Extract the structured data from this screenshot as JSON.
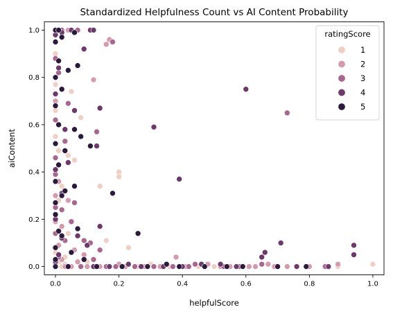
{
  "chart_data": {
    "type": "scatter",
    "title": "Standardized Helpfulness Count vs AI Content Probability",
    "xlabel": "helpfulScore",
    "ylabel": "aiContent",
    "xlim": [
      -0.035,
      1.035
    ],
    "ylim": [
      -0.035,
      1.035
    ],
    "xticks": [
      0.0,
      0.2,
      0.4,
      0.6,
      0.8,
      1.0
    ],
    "yticks": [
      0.0,
      0.2,
      0.4,
      0.6,
      0.8,
      1.0
    ],
    "xtick_labels": [
      "0.0",
      "0.2",
      "0.4",
      "0.6",
      "0.8",
      "1.0"
    ],
    "ytick_labels": [
      "0.0",
      "0.2",
      "0.4",
      "0.6",
      "0.8",
      "1.0"
    ],
    "grid": false,
    "legend": {
      "title": "ratingScore",
      "placement": "top-right",
      "entries": [
        "1",
        "2",
        "3",
        "4",
        "5"
      ]
    },
    "colors": {
      "1": "#eed0c7",
      "2": "#d49aae",
      "3": "#a7688f",
      "4": "#6b3a6b",
      "5": "#2b1a3b"
    },
    "series": [
      {
        "name": "1",
        "points": [
          [
            0.0,
            0.0
          ],
          [
            0.01,
            0.02
          ],
          [
            0.02,
            0.0
          ],
          [
            0.0,
            0.06
          ],
          [
            0.03,
            0.01
          ],
          [
            0.05,
            0.74
          ],
          [
            0.08,
            0.63
          ],
          [
            0.04,
            0.47
          ],
          [
            0.0,
            0.55
          ],
          [
            0.06,
            0.45
          ],
          [
            0.2,
            0.4
          ],
          [
            0.2,
            0.38
          ],
          [
            0.14,
            0.34
          ],
          [
            0.16,
            0.11
          ],
          [
            0.23,
            0.08
          ],
          [
            0.17,
            0.0
          ],
          [
            0.3,
            0.01
          ],
          [
            0.36,
            0.0
          ],
          [
            0.42,
            0.0
          ],
          [
            0.5,
            0.0
          ],
          [
            0.58,
            0.0
          ],
          [
            0.89,
            0.0
          ],
          [
            1.0,
            0.01
          ],
          [
            0.0,
            0.66
          ],
          [
            0.0,
            0.77
          ],
          [
            0.02,
            0.34
          ],
          [
            0.01,
            0.28
          ],
          [
            0.04,
            0.14
          ],
          [
            0.1,
            0.02
          ],
          [
            0.12,
            0.0
          ],
          [
            0.26,
            0.0
          ],
          [
            0.45,
            0.0
          ],
          [
            0.01,
            0.49
          ],
          [
            0.0,
            0.9
          ],
          [
            0.03,
            0.04
          ]
        ]
      },
      {
        "name": "2",
        "points": [
          [
            0.0,
            0.01
          ],
          [
            0.02,
            0.03
          ],
          [
            0.01,
            0.09
          ],
          [
            0.05,
            0.0
          ],
          [
            0.0,
            0.3
          ],
          [
            0.01,
            0.36
          ],
          [
            0.04,
            0.28
          ],
          [
            0.07,
            0.02
          ],
          [
            0.12,
            0.79
          ],
          [
            0.16,
            0.94
          ],
          [
            0.17,
            0.96
          ],
          [
            0.0,
            0.7
          ],
          [
            0.1,
            0.0
          ],
          [
            0.14,
            0.0
          ],
          [
            0.2,
            0.01
          ],
          [
            0.28,
            0.0
          ],
          [
            0.33,
            0.0
          ],
          [
            0.41,
            0.0
          ],
          [
            0.48,
            0.01
          ],
          [
            0.55,
            0.0
          ],
          [
            0.63,
            0.0
          ],
          [
            0.67,
            0.01
          ],
          [
            0.73,
            0.0
          ],
          [
            0.89,
            0.01
          ],
          [
            0.38,
            0.04
          ],
          [
            0.0,
            0.19
          ],
          [
            0.02,
            0.17
          ],
          [
            0.06,
            0.07
          ],
          [
            0.09,
            0.05
          ],
          [
            0.0,
            1.0
          ],
          [
            0.04,
            1.0
          ],
          [
            0.03,
            0.0
          ],
          [
            0.22,
            0.0
          ],
          [
            0.52,
            0.0
          ],
          [
            0.61,
            0.0
          ],
          [
            0.69,
            0.0
          ],
          [
            0.8,
            0.0
          ]
        ]
      },
      {
        "name": "3",
        "points": [
          [
            0.0,
            0.0
          ],
          [
            0.01,
            0.04
          ],
          [
            0.0,
            0.14
          ],
          [
            0.03,
            0.11
          ],
          [
            0.05,
            0.19
          ],
          [
            0.04,
            0.69
          ],
          [
            0.0,
            0.88
          ],
          [
            0.02,
            1.0
          ],
          [
            0.07,
            1.0
          ],
          [
            0.18,
            0.95
          ],
          [
            0.13,
            0.57
          ],
          [
            0.11,
            0.1
          ],
          [
            0.14,
            0.07
          ],
          [
            0.09,
            0.11
          ],
          [
            0.0,
            0.62
          ],
          [
            0.01,
            0.82
          ],
          [
            0.0,
            0.39
          ],
          [
            0.02,
            0.24
          ],
          [
            0.08,
            0.0
          ],
          [
            0.19,
            0.0
          ],
          [
            0.25,
            0.0
          ],
          [
            0.31,
            0.0
          ],
          [
            0.37,
            0.0
          ],
          [
            0.44,
            0.01
          ],
          [
            0.53,
            0.0
          ],
          [
            0.65,
            0.01
          ],
          [
            0.73,
            0.65
          ],
          [
            0.0,
            0.46
          ],
          [
            0.03,
            0.53
          ],
          [
            0.06,
            0.27
          ],
          [
            0.12,
            0.03
          ],
          [
            0.16,
            0.0
          ],
          [
            0.42,
            0.0
          ],
          [
            0.58,
            0.0
          ],
          [
            0.85,
            0.0
          ],
          [
            0.0,
            0.25
          ],
          [
            0.01,
            0.6
          ]
        ]
      },
      {
        "name": "4",
        "points": [
          [
            0.0,
            0.02
          ],
          [
            0.01,
            0.05
          ],
          [
            0.02,
            0.12
          ],
          [
            0.0,
            0.2
          ],
          [
            0.03,
            0.58
          ],
          [
            0.0,
            0.73
          ],
          [
            0.01,
            0.84
          ],
          [
            0.09,
            0.92
          ],
          [
            0.06,
            0.66
          ],
          [
            0.14,
            0.67
          ],
          [
            0.13,
            0.51
          ],
          [
            0.04,
            0.44
          ],
          [
            0.0,
            0.98
          ],
          [
            0.02,
            0.99
          ],
          [
            0.05,
            1.0
          ],
          [
            0.11,
            1.0
          ],
          [
            0.12,
            1.0
          ],
          [
            0.31,
            0.59
          ],
          [
            0.39,
            0.37
          ],
          [
            0.6,
            0.75
          ],
          [
            0.1,
            0.09
          ],
          [
            0.12,
            0.0
          ],
          [
            0.17,
            0.0
          ],
          [
            0.23,
            0.01
          ],
          [
            0.27,
            0.0
          ],
          [
            0.34,
            0.0
          ],
          [
            0.4,
            0.0
          ],
          [
            0.46,
            0.01
          ],
          [
            0.52,
            0.01
          ],
          [
            0.57,
            0.0
          ],
          [
            0.66,
            0.06
          ],
          [
            0.65,
            0.04
          ],
          [
            0.71,
            0.1
          ],
          [
            0.76,
            0.0
          ],
          [
            0.86,
            0.0
          ],
          [
            0.94,
            0.09
          ],
          [
            0.94,
            0.05
          ],
          [
            0.0,
            0.41
          ],
          [
            0.02,
            0.31
          ],
          [
            0.07,
            0.13
          ],
          [
            0.14,
            0.17
          ]
        ]
      },
      {
        "name": "5",
        "points": [
          [
            0.0,
            0.0
          ],
          [
            0.0,
            0.03
          ],
          [
            0.0,
            0.08
          ],
          [
            0.01,
            0.15
          ],
          [
            0.0,
            0.22
          ],
          [
            0.02,
            0.3
          ],
          [
            0.0,
            0.36
          ],
          [
            0.01,
            0.43
          ],
          [
            0.03,
            0.49
          ],
          [
            0.0,
            0.52
          ],
          [
            0.01,
            0.6
          ],
          [
            0.0,
            0.68
          ],
          [
            0.02,
            0.75
          ],
          [
            0.0,
            0.8
          ],
          [
            0.04,
            0.83
          ],
          [
            0.07,
            0.85
          ],
          [
            0.01,
            0.87
          ],
          [
            0.0,
            0.95
          ],
          [
            0.0,
            1.0
          ],
          [
            0.01,
            1.0
          ],
          [
            0.02,
            0.97
          ],
          [
            0.06,
            0.99
          ],
          [
            0.06,
            0.58
          ],
          [
            0.08,
            0.55
          ],
          [
            0.11,
            0.51
          ],
          [
            0.18,
            0.31
          ],
          [
            0.06,
            0.34
          ],
          [
            0.07,
            0.16
          ],
          [
            0.05,
            0.06
          ],
          [
            0.09,
            0.03
          ],
          [
            0.26,
            0.14
          ],
          [
            0.21,
            0.0
          ],
          [
            0.29,
            0.0
          ],
          [
            0.35,
            0.01
          ],
          [
            0.39,
            0.0
          ],
          [
            0.47,
            0.0
          ],
          [
            0.54,
            0.0
          ],
          [
            0.59,
            0.0
          ],
          [
            0.7,
            0.0
          ],
          [
            0.79,
            0.0
          ],
          [
            0.0,
            0.27
          ],
          [
            0.03,
            0.32
          ],
          [
            0.02,
            0.13
          ],
          [
            0.04,
            0.0
          ],
          [
            0.13,
            0.0
          ]
        ]
      }
    ]
  }
}
